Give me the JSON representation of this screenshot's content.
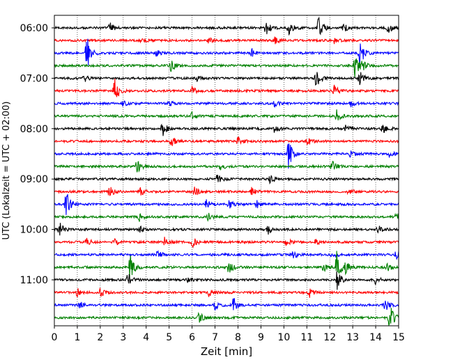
{
  "chart_data": {
    "type": "line",
    "title": "",
    "xlabel": "Zeit  [min]",
    "ylabel": "UTC (Lokalzeit = UTC + 02:00)",
    "xlim": [
      0,
      15
    ],
    "x_ticks": [
      "0",
      "1",
      "2",
      "3",
      "4",
      "5",
      "6",
      "7",
      "8",
      "9",
      "10",
      "11",
      "12",
      "13",
      "14",
      "15"
    ],
    "y_tick_labels": [
      "06:00",
      "07:00",
      "08:00",
      "09:00",
      "10:00",
      "11:00"
    ],
    "grid": "vertical dotted",
    "trace_interval_minutes": 15,
    "trace_start": "06:00",
    "trace_colors": [
      "#000000",
      "#ff0000",
      "#0000ff",
      "#008000"
    ],
    "traces": [
      {
        "start": "06:00",
        "color": "black",
        "events": [
          [
            2.4,
            0.4
          ],
          [
            9.2,
            0.6
          ],
          [
            10.2,
            0.5
          ],
          [
            11.5,
            1.0
          ],
          [
            12.6,
            0.3
          ],
          [
            14.5,
            0.5
          ]
        ]
      },
      {
        "start": "06:15",
        "color": "red",
        "events": [
          [
            3.8,
            0.2
          ],
          [
            6.7,
            0.2
          ],
          [
            9.6,
            0.25
          ],
          [
            12.2,
            0.2
          ]
        ]
      },
      {
        "start": "06:30",
        "color": "blue",
        "events": [
          [
            1.4,
            1.4
          ],
          [
            4.4,
            0.3
          ],
          [
            8.6,
            0.3
          ],
          [
            13.3,
            1.1
          ]
        ]
      },
      {
        "start": "06:45",
        "color": "green",
        "events": [
          [
            5.1,
            0.5
          ],
          [
            13.1,
            0.9
          ],
          [
            13.4,
            0.3
          ]
        ]
      },
      {
        "start": "07:00",
        "color": "black",
        "events": [
          [
            1.3,
            0.25
          ],
          [
            6.2,
            0.2
          ],
          [
            11.4,
            0.8
          ],
          [
            13.3,
            0.5
          ]
        ]
      },
      {
        "start": "07:15",
        "color": "red",
        "events": [
          [
            2.6,
            1.3
          ],
          [
            6.0,
            0.4
          ],
          [
            12.2,
            0.4
          ]
        ]
      },
      {
        "start": "07:30",
        "color": "blue",
        "events": [
          [
            3.0,
            0.2
          ],
          [
            5.0,
            0.2
          ],
          [
            9.6,
            0.2
          ],
          [
            12.9,
            0.25
          ]
        ]
      },
      {
        "start": "07:45",
        "color": "green",
        "events": [
          [
            6.0,
            0.3
          ],
          [
            12.3,
            0.4
          ]
        ]
      },
      {
        "start": "08:00",
        "color": "black",
        "events": [
          [
            4.7,
            0.6
          ],
          [
            9.6,
            0.3
          ],
          [
            12.7,
            0.3
          ],
          [
            14.3,
            0.4
          ]
        ]
      },
      {
        "start": "08:15",
        "color": "red",
        "events": [
          [
            5.1,
            0.4
          ],
          [
            8.0,
            0.3
          ],
          [
            11.0,
            0.35
          ]
        ]
      },
      {
        "start": "08:30",
        "color": "blue",
        "events": [
          [
            10.2,
            1.1
          ],
          [
            12.9,
            0.3
          ],
          [
            14.6,
            0.25
          ]
        ]
      },
      {
        "start": "08:45",
        "color": "green",
        "events": [
          [
            3.6,
            0.5
          ],
          [
            7.2,
            0.3
          ],
          [
            12.1,
            0.4
          ]
        ]
      },
      {
        "start": "09:00",
        "color": "black",
        "events": [
          [
            7.1,
            0.35
          ],
          [
            9.4,
            0.3
          ]
        ]
      },
      {
        "start": "09:15",
        "color": "red",
        "events": [
          [
            2.4,
            0.4
          ],
          [
            3.7,
            0.4
          ],
          [
            6.1,
            0.3
          ],
          [
            8.6,
            0.3
          ],
          [
            12.8,
            0.3
          ]
        ]
      },
      {
        "start": "09:30",
        "color": "blue",
        "events": [
          [
            0.5,
            1.2
          ],
          [
            6.6,
            0.35
          ],
          [
            7.6,
            0.3
          ],
          [
            8.8,
            0.3
          ]
        ]
      },
      {
        "start": "09:45",
        "color": "green",
        "events": [
          [
            3.7,
            0.3
          ],
          [
            6.7,
            0.25
          ],
          [
            14.9,
            0.35
          ]
        ]
      },
      {
        "start": "10:00",
        "color": "black",
        "events": [
          [
            0.2,
            0.6
          ],
          [
            3.7,
            0.25
          ],
          [
            9.3,
            0.4
          ],
          [
            14.1,
            0.3
          ]
        ]
      },
      {
        "start": "10:15",
        "color": "red",
        "events": [
          [
            1.4,
            0.4
          ],
          [
            2.6,
            0.3
          ],
          [
            4.8,
            0.3
          ],
          [
            6.0,
            0.4
          ],
          [
            10.1,
            0.3
          ],
          [
            11.4,
            0.25
          ]
        ]
      },
      {
        "start": "10:30",
        "color": "blue",
        "events": [
          [
            4.5,
            0.3
          ],
          [
            10.4,
            0.3
          ],
          [
            12.1,
            0.3
          ],
          [
            14.9,
            0.4
          ]
        ]
      },
      {
        "start": "10:45",
        "color": "green",
        "events": [
          [
            3.3,
            1.0
          ],
          [
            7.6,
            0.5
          ],
          [
            11.7,
            0.4
          ],
          [
            12.3,
            1.1
          ],
          [
            12.7,
            0.4
          ],
          [
            14.5,
            0.3
          ]
        ]
      },
      {
        "start": "11:00",
        "color": "black",
        "events": [
          [
            3.2,
            0.5
          ],
          [
            5.8,
            0.2
          ],
          [
            12.3,
            0.9
          ],
          [
            14.0,
            0.3
          ]
        ]
      },
      {
        "start": "11:15",
        "color": "red",
        "events": [
          [
            1.0,
            0.3
          ],
          [
            2.0,
            0.3
          ],
          [
            6.7,
            0.3
          ],
          [
            11.1,
            0.4
          ]
        ]
      },
      {
        "start": "11:30",
        "color": "blue",
        "events": [
          [
            1.1,
            0.25
          ],
          [
            7.0,
            0.35
          ],
          [
            7.8,
            0.6
          ],
          [
            14.4,
            0.5
          ]
        ]
      },
      {
        "start": "11:45",
        "color": "green",
        "events": [
          [
            6.3,
            0.4
          ],
          [
            14.6,
            1.1
          ]
        ]
      }
    ]
  }
}
